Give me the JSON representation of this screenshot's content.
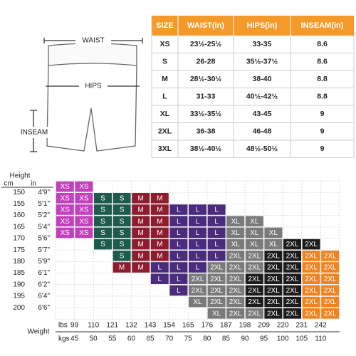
{
  "diagram": {
    "waist": "WAIST",
    "hips": "HIPS",
    "inseam": "INSEAM"
  },
  "table": {
    "header": [
      "SIZE",
      "WAIST(in)",
      "HIPS(in)",
      "INSEAM(in)"
    ],
    "rows": [
      [
        "XS",
        "23½-25½",
        "33-35",
        "8.6"
      ],
      [
        "S",
        "26-28",
        "35½-37½",
        "8.6"
      ],
      [
        "M",
        "28½-30½",
        "38-40",
        "8.8"
      ],
      [
        "L",
        "31-33",
        "40½-42½",
        "8.8"
      ],
      [
        "XL",
        "33½-35½",
        "43-45",
        "9"
      ],
      [
        "2XL",
        "36-38",
        "46-48",
        "9"
      ],
      [
        "3XL",
        "38½-40½",
        "48½-50½",
        "9"
      ]
    ]
  },
  "size_grid": {
    "height_label": "Height",
    "cm_label": "cm",
    "in_label": "in",
    "cm": [
      150,
      155,
      160,
      165,
      170,
      175,
      180,
      185,
      190,
      195,
      200
    ],
    "in": [
      "4'9\"",
      "5'1\"",
      "5'2\"",
      "5'4\"",
      "5'6\"",
      "5'7\"",
      "5'9\"",
      "6'1\"",
      "6'2\"",
      "6'4\"",
      "6'6\""
    ],
    "weight_label": "Weight",
    "lbs_label": "lbs",
    "kgs_label": "kgs",
    "lbs": [
      99,
      110,
      121,
      132,
      143,
      154,
      165,
      176,
      187,
      198,
      209,
      220,
      231,
      242
    ],
    "kgs": [
      45,
      50,
      55,
      60,
      65,
      70,
      75,
      80,
      85,
      90,
      95,
      100,
      105,
      110
    ],
    "rows": [
      [
        {
          "text": "XS",
          "color": "#c23fbe"
        },
        {
          "text": "XS",
          "color": "#c23fbe"
        },
        null,
        null,
        null,
        null,
        null,
        null,
        null,
        null,
        null,
        null,
        null,
        null,
        null
      ],
      [
        {
          "text": "XS",
          "color": "#c23fbe"
        },
        {
          "text": "XS",
          "color": "#c23fbe"
        },
        {
          "text": "S",
          "color": "#1e5b4e"
        },
        {
          "text": "S",
          "color": "#1e5b4e"
        },
        {
          "text": "M",
          "color": "#8c1c2e"
        },
        {
          "text": "M",
          "color": "#8c1c2e"
        },
        null,
        null,
        null,
        null,
        null,
        null,
        null,
        null,
        null
      ],
      [
        {
          "text": "XS",
          "color": "#c23fbe"
        },
        {
          "text": "XS",
          "color": "#c23fbe"
        },
        {
          "text": "S",
          "color": "#1e5b4e"
        },
        {
          "text": "S",
          "color": "#1e5b4e"
        },
        {
          "text": "M",
          "color": "#8c1c2e"
        },
        {
          "text": "M",
          "color": "#8c1c2e"
        },
        {
          "text": "L",
          "color": "#4a2b7c"
        },
        {
          "text": "L",
          "color": "#4a2b7c"
        },
        {
          "text": "L",
          "color": "#4a2b7c"
        },
        null,
        null,
        null,
        null,
        null,
        null
      ],
      [
        {
          "text": "XS",
          "color": "#c23fbe"
        },
        {
          "text": "XS",
          "color": "#c23fbe"
        },
        {
          "text": "S",
          "color": "#1e5b4e"
        },
        {
          "text": "S",
          "color": "#1e5b4e"
        },
        {
          "text": "M",
          "color": "#8c1c2e"
        },
        {
          "text": "M",
          "color": "#8c1c2e"
        },
        {
          "text": "L",
          "color": "#4a2b7c"
        },
        {
          "text": "L",
          "color": "#4a2b7c"
        },
        {
          "text": "L",
          "color": "#4a2b7c"
        },
        {
          "text": "XL",
          "color": "#7a7a7a"
        },
        {
          "text": "XL",
          "color": "#7a7a7a"
        },
        null,
        null,
        null,
        null
      ],
      [
        {
          "text": "XS",
          "color": "#c23fbe"
        },
        {
          "text": "XS",
          "color": "#c23fbe"
        },
        {
          "text": "S",
          "color": "#1e5b4e"
        },
        {
          "text": "S",
          "color": "#1e5b4e"
        },
        {
          "text": "M",
          "color": "#8c1c2e"
        },
        {
          "text": "M",
          "color": "#8c1c2e"
        },
        {
          "text": "L",
          "color": "#4a2b7c"
        },
        {
          "text": "L",
          "color": "#4a2b7c"
        },
        {
          "text": "L",
          "color": "#4a2b7c"
        },
        {
          "text": "XL",
          "color": "#7a7a7a"
        },
        {
          "text": "XL",
          "color": "#7a7a7a"
        },
        {
          "text": "XL",
          "color": "#7a7a7a"
        },
        null,
        null,
        null
      ],
      [
        null,
        null,
        {
          "text": "S",
          "color": "#1e5b4e"
        },
        {
          "text": "S",
          "color": "#1e5b4e"
        },
        {
          "text": "M",
          "color": "#8c1c2e"
        },
        {
          "text": "M",
          "color": "#8c1c2e"
        },
        {
          "text": "L",
          "color": "#4a2b7c"
        },
        {
          "text": "L",
          "color": "#4a2b7c"
        },
        {
          "text": "L",
          "color": "#4a2b7c"
        },
        {
          "text": "XL",
          "color": "#7a7a7a"
        },
        {
          "text": "XL",
          "color": "#7a7a7a"
        },
        {
          "text": "XL",
          "color": "#7a7a7a"
        },
        {
          "text": "2XL",
          "color": "#1c1c1c"
        },
        {
          "text": "2XL",
          "color": "#1c1c1c"
        },
        null
      ],
      [
        null,
        null,
        null,
        {
          "text": "S",
          "color": "#1e5b4e"
        },
        {
          "text": "M",
          "color": "#8c1c2e"
        },
        {
          "text": "M",
          "color": "#8c1c2e"
        },
        {
          "text": "L",
          "color": "#4a2b7c"
        },
        {
          "text": "L",
          "color": "#4a2b7c"
        },
        {
          "text": "L",
          "color": "#4a2b7c"
        },
        {
          "text": "2XL",
          "color": "#7a7a7a"
        },
        {
          "text": "2XL",
          "color": "#7a7a7a"
        },
        {
          "text": "2XL",
          "color": "#1c1c1c"
        },
        {
          "text": "2XL",
          "color": "#1c1c1c"
        },
        {
          "text": "2XL",
          "color": "#ee8322"
        },
        {
          "text": "2XL",
          "color": "#ee8322"
        }
      ],
      [
        null,
        null,
        null,
        {
          "text": "M",
          "color": "#8c1c2e"
        },
        {
          "text": "M",
          "color": "#8c1c2e"
        },
        {
          "text": "L",
          "color": "#4a2b7c"
        },
        {
          "text": "L",
          "color": "#4a2b7c"
        },
        {
          "text": "L",
          "color": "#4a2b7c"
        },
        {
          "text": "2XL",
          "color": "#7a7a7a"
        },
        {
          "text": "2XL",
          "color": "#7a7a7a"
        },
        {
          "text": "2XL",
          "color": "#7a7a7a"
        },
        {
          "text": "2XL",
          "color": "#1c1c1c"
        },
        {
          "text": "2XL",
          "color": "#1c1c1c"
        },
        {
          "text": "2XL",
          "color": "#ee8322"
        },
        {
          "text": "2XL",
          "color": "#ee8322"
        }
      ],
      [
        null,
        null,
        null,
        null,
        null,
        {
          "text": "L",
          "color": "#4a2b7c"
        },
        {
          "text": "L",
          "color": "#4a2b7c"
        },
        {
          "text": "2XL",
          "color": "#7a7a7a"
        },
        {
          "text": "2XL",
          "color": "#7a7a7a"
        },
        {
          "text": "2XL",
          "color": "#7a7a7a"
        },
        {
          "text": "2XL",
          "color": "#1c1c1c"
        },
        {
          "text": "2XL",
          "color": "#1c1c1c"
        },
        {
          "text": "2XL",
          "color": "#1c1c1c"
        },
        {
          "text": "2XL",
          "color": "#ee8322"
        },
        {
          "text": "2XL",
          "color": "#ee8322"
        }
      ],
      [
        null,
        null,
        null,
        null,
        null,
        null,
        {
          "text": "L",
          "color": "#4a2b7c"
        },
        {
          "text": "2XL",
          "color": "#7a7a7a"
        },
        {
          "text": "2XL",
          "color": "#7a7a7a"
        },
        {
          "text": "2XL",
          "color": "#7a7a7a"
        },
        {
          "text": "2XL",
          "color": "#1c1c1c"
        },
        {
          "text": "2XL",
          "color": "#1c1c1c"
        },
        {
          "text": "2XL",
          "color": "#1c1c1c"
        },
        {
          "text": "2XL",
          "color": "#ee8322"
        },
        {
          "text": "2XL",
          "color": "#ee8322"
        }
      ],
      [
        null,
        null,
        null,
        null,
        null,
        null,
        null,
        {
          "text": "XL",
          "color": "#7a7a7a"
        },
        {
          "text": "2XL",
          "color": "#7a7a7a"
        },
        {
          "text": "2XL",
          "color": "#7a7a7a"
        },
        {
          "text": "2XL",
          "color": "#1c1c1c"
        },
        {
          "text": "2XL",
          "color": "#1c1c1c"
        },
        {
          "text": "2XL",
          "color": "#1c1c1c"
        },
        {
          "text": "2XL",
          "color": "#ee8322"
        },
        {
          "text": "2XL",
          "color": "#ee8322"
        }
      ],
      [
        null,
        null,
        null,
        null,
        null,
        null,
        null,
        null,
        {
          "text": "XL",
          "color": "#7a7a7a"
        },
        {
          "text": "2XL",
          "color": "#7a7a7a"
        },
        {
          "text": "2XL",
          "color": "#7a7a7a"
        },
        {
          "text": "2XL",
          "color": "#1c1c1c"
        },
        {
          "text": "2XL",
          "color": "#1c1c1c"
        },
        {
          "text": "2XL",
          "color": "#ee8322"
        },
        {
          "text": "2XL",
          "color": "#ee8322"
        }
      ]
    ]
  }
}
